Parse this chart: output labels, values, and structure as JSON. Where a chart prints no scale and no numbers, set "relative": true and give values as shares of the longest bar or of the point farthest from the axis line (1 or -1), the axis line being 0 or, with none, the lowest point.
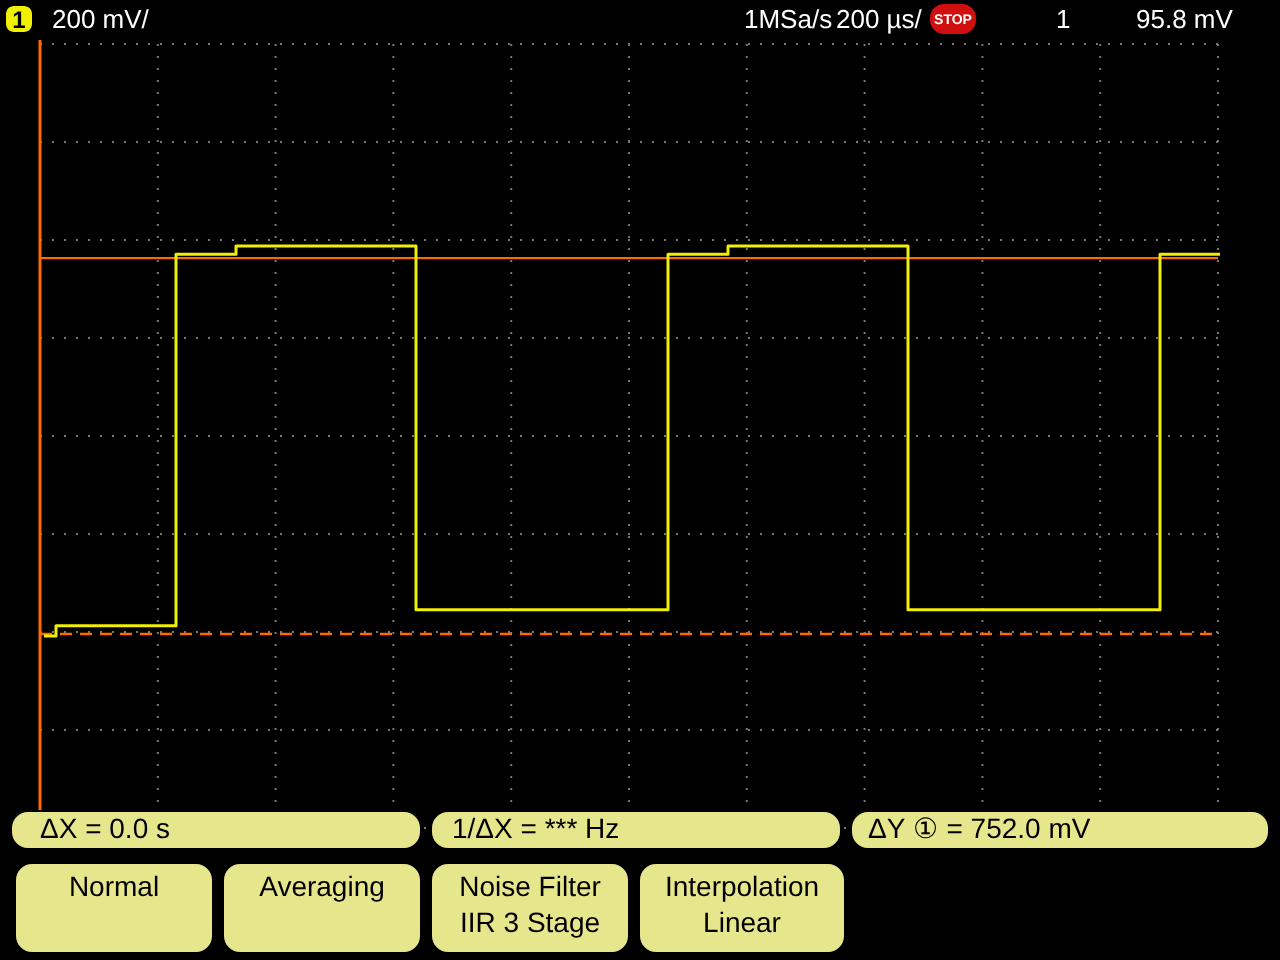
{
  "chart_data": {
    "type": "step",
    "relative": true,
    "grid": true,
    "categories": [
      null,
      null,
      null,
      null,
      null,
      null,
      null,
      null,
      null,
      null,
      null,
      null,
      null,
      null,
      null,
      null,
      null,
      null,
      null,
      null,
      null,
      null,
      null,
      null,
      null,
      null,
      null,
      null,
      null,
      null,
      null,
      null,
      null,
      null,
      null,
      null,
      null,
      null,
      null,
      null,
      null,
      null,
      null,
      null,
      null,
      null,
      null,
      null,
      null,
      null,
      null,
      null,
      null,
      null,
      null,
      null,
      null,
      null,
      null,
      null,
      null,
      null,
      null,
      null,
      null,
      null,
      null,
      null,
      null,
      null,
      null,
      null,
      null,
      null,
      null,
      null,
      null,
      null,
      null,
      null,
      null,
      null,
      null,
      null,
      null,
      null,
      null,
      null,
      null,
      null,
      null,
      null,
      null,
      null,
      null,
      null,
      null,
      null,
      null
    ],
    "series": [
      {
        "color": "#f0f000",
        "values": [
          0,
          0.026,
          0.026,
          0.026,
          0.026,
          0.026,
          0.026,
          0.026,
          0.026,
          0.026,
          0.026,
          0.979,
          0.979,
          0.979,
          0.979,
          0.979,
          1,
          1,
          1,
          1,
          1,
          1,
          1,
          1,
          1,
          1,
          1,
          1,
          1,
          1,
          1,
          0.067,
          0.067,
          0.067,
          0.067,
          0.067,
          0.067,
          0.067,
          0.067,
          0.067,
          0.067,
          0.067,
          0.067,
          0.067,
          0.067,
          0.067,
          0.067,
          0.067,
          0.067,
          0.067,
          0.067,
          0.067,
          0.979,
          0.979,
          0.979,
          0.979,
          0.979,
          1,
          1,
          1,
          1,
          1,
          1,
          1,
          1,
          1,
          1,
          1,
          1,
          1,
          1,
          1,
          0.067,
          0.067,
          0.067,
          0.067,
          0.067,
          0.067,
          0.067,
          0.067,
          0.067,
          0.067,
          0.067,
          0.067,
          0.067,
          0.067,
          0.067,
          0.067,
          0.067,
          0.067,
          0.067,
          0.067,
          0.067,
          0.979,
          0.979,
          0.979,
          0.979,
          0.979,
          0.979
        ]
      }
    ],
    "ref_lines": [
      {
        "axis": "y",
        "value": 0.969,
        "color": "#ff6a00",
        "line_style": "solid"
      },
      {
        "axis": "y",
        "value": 0.005,
        "color": "#ff6a00",
        "line_style": "dashed"
      }
    ],
    "annotations": [
      "1",
      "200 mV/",
      "1MSa/s",
      "200 µs/",
      "STOP",
      "1",
      "95.8 mV",
      "ΔX = 0.0 s",
      "1/ΔX = *** Hz",
      "ΔY ① = 752.0 mV",
      "Normal",
      "Averaging",
      "Noise Filter",
      "IIR 3 Stage",
      "Interpolation",
      "Linear"
    ]
  }
}
